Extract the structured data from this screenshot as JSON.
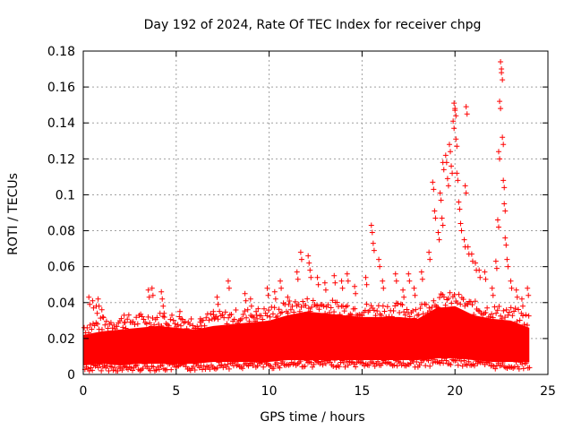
{
  "chart_data": {
    "type": "scatter",
    "title": "Day 192 of 2024, Rate Of TEC Index for receiver chpg",
    "xlabel": "GPS time / hours",
    "ylabel": "ROTI / TECUs",
    "xlim": [
      0,
      25
    ],
    "ylim": [
      0,
      0.18
    ],
    "x_ticks": [
      0,
      5,
      10,
      15,
      20,
      25
    ],
    "x_tick_labels": [
      "0",
      "5",
      "10",
      "15",
      "20",
      "25"
    ],
    "y_ticks": [
      0,
      0.02,
      0.04,
      0.06,
      0.08,
      0.1,
      0.12,
      0.14,
      0.16,
      0.18
    ],
    "y_tick_labels": [
      "0",
      "0.02",
      "0.04",
      "0.06",
      "0.08",
      "0.1",
      "0.12",
      "0.14",
      "0.16",
      "0.18"
    ],
    "grid": true,
    "marker": "+",
    "color": "#ff0000",
    "series": [
      {
        "name": "ROTI",
        "points": [
          [
            0.3,
            0.043
          ],
          [
            0.5,
            0.041
          ],
          [
            0.7,
            0.038
          ],
          [
            0.8,
            0.042
          ],
          [
            1.0,
            0.036
          ],
          [
            2.2,
            0.033
          ],
          [
            3.5,
            0.047
          ],
          [
            3.7,
            0.048
          ],
          [
            4.2,
            0.046
          ],
          [
            4.3,
            0.038
          ],
          [
            5.2,
            0.035
          ],
          [
            6.3,
            0.031
          ],
          [
            7.0,
            0.035
          ],
          [
            7.2,
            0.043
          ],
          [
            7.8,
            0.052
          ],
          [
            8.7,
            0.045
          ],
          [
            9.0,
            0.042
          ],
          [
            9.3,
            0.035
          ],
          [
            9.9,
            0.048
          ],
          [
            10.3,
            0.046
          ],
          [
            10.6,
            0.052
          ],
          [
            11.0,
            0.043
          ],
          [
            11.5,
            0.057
          ],
          [
            11.7,
            0.068
          ],
          [
            12.1,
            0.066
          ],
          [
            12.2,
            0.058
          ],
          [
            12.6,
            0.054
          ],
          [
            13.0,
            0.051
          ],
          [
            13.5,
            0.055
          ],
          [
            13.9,
            0.052
          ],
          [
            14.2,
            0.056
          ],
          [
            14.6,
            0.049
          ],
          [
            15.2,
            0.054
          ],
          [
            15.5,
            0.083
          ],
          [
            15.6,
            0.073
          ],
          [
            15.9,
            0.064
          ],
          [
            16.1,
            0.052
          ],
          [
            16.8,
            0.056
          ],
          [
            17.2,
            0.047
          ],
          [
            17.5,
            0.056
          ],
          [
            17.8,
            0.048
          ],
          [
            18.2,
            0.057
          ],
          [
            18.6,
            0.068
          ],
          [
            18.8,
            0.107
          ],
          [
            18.9,
            0.091
          ],
          [
            19.1,
            0.079
          ],
          [
            19.2,
            0.101
          ],
          [
            19.3,
            0.087
          ],
          [
            19.35,
            0.118
          ],
          [
            19.5,
            0.122
          ],
          [
            19.6,
            0.109
          ],
          [
            19.7,
            0.128
          ],
          [
            19.8,
            0.116
          ],
          [
            19.9,
            0.141
          ],
          [
            19.95,
            0.151
          ],
          [
            20.0,
            0.148
          ],
          [
            20.05,
            0.131
          ],
          [
            20.1,
            0.112
          ],
          [
            20.2,
            0.096
          ],
          [
            20.3,
            0.084
          ],
          [
            20.5,
            0.075
          ],
          [
            20.55,
            0.105
          ],
          [
            20.6,
            0.149
          ],
          [
            20.7,
            0.071
          ],
          [
            20.9,
            0.067
          ],
          [
            21.1,
            0.062
          ],
          [
            21.3,
            0.058
          ],
          [
            21.6,
            0.057
          ],
          [
            22.0,
            0.048
          ],
          [
            22.2,
            0.063
          ],
          [
            22.3,
            0.086
          ],
          [
            22.35,
            0.124
          ],
          [
            22.4,
            0.152
          ],
          [
            22.45,
            0.174
          ],
          [
            22.5,
            0.168
          ],
          [
            22.55,
            0.132
          ],
          [
            22.6,
            0.108
          ],
          [
            22.65,
            0.095
          ],
          [
            22.7,
            0.076
          ],
          [
            22.8,
            0.064
          ],
          [
            23.0,
            0.052
          ],
          [
            23.3,
            0.047
          ],
          [
            23.6,
            0.042
          ],
          [
            23.9,
            0.048
          ]
        ],
        "band": [
          [
            0.0,
            0.005,
            0.022
          ],
          [
            1.0,
            0.006,
            0.024
          ],
          [
            2.0,
            0.005,
            0.025
          ],
          [
            3.0,
            0.006,
            0.026
          ],
          [
            4.0,
            0.006,
            0.027
          ],
          [
            5.0,
            0.006,
            0.026
          ],
          [
            6.0,
            0.006,
            0.025
          ],
          [
            7.0,
            0.007,
            0.027
          ],
          [
            8.0,
            0.007,
            0.028
          ],
          [
            9.0,
            0.007,
            0.029
          ],
          [
            10.0,
            0.007,
            0.03
          ],
          [
            11.0,
            0.008,
            0.033
          ],
          [
            12.0,
            0.008,
            0.035
          ],
          [
            13.0,
            0.008,
            0.034
          ],
          [
            14.0,
            0.008,
            0.033
          ],
          [
            15.0,
            0.008,
            0.032
          ],
          [
            16.0,
            0.008,
            0.032
          ],
          [
            17.0,
            0.008,
            0.032
          ],
          [
            18.0,
            0.008,
            0.031
          ],
          [
            19.0,
            0.009,
            0.037
          ],
          [
            20.0,
            0.009,
            0.038
          ],
          [
            21.0,
            0.008,
            0.033
          ],
          [
            22.0,
            0.007,
            0.031
          ],
          [
            23.0,
            0.007,
            0.03
          ],
          [
            24.0,
            0.007,
            0.026
          ]
        ]
      }
    ]
  }
}
